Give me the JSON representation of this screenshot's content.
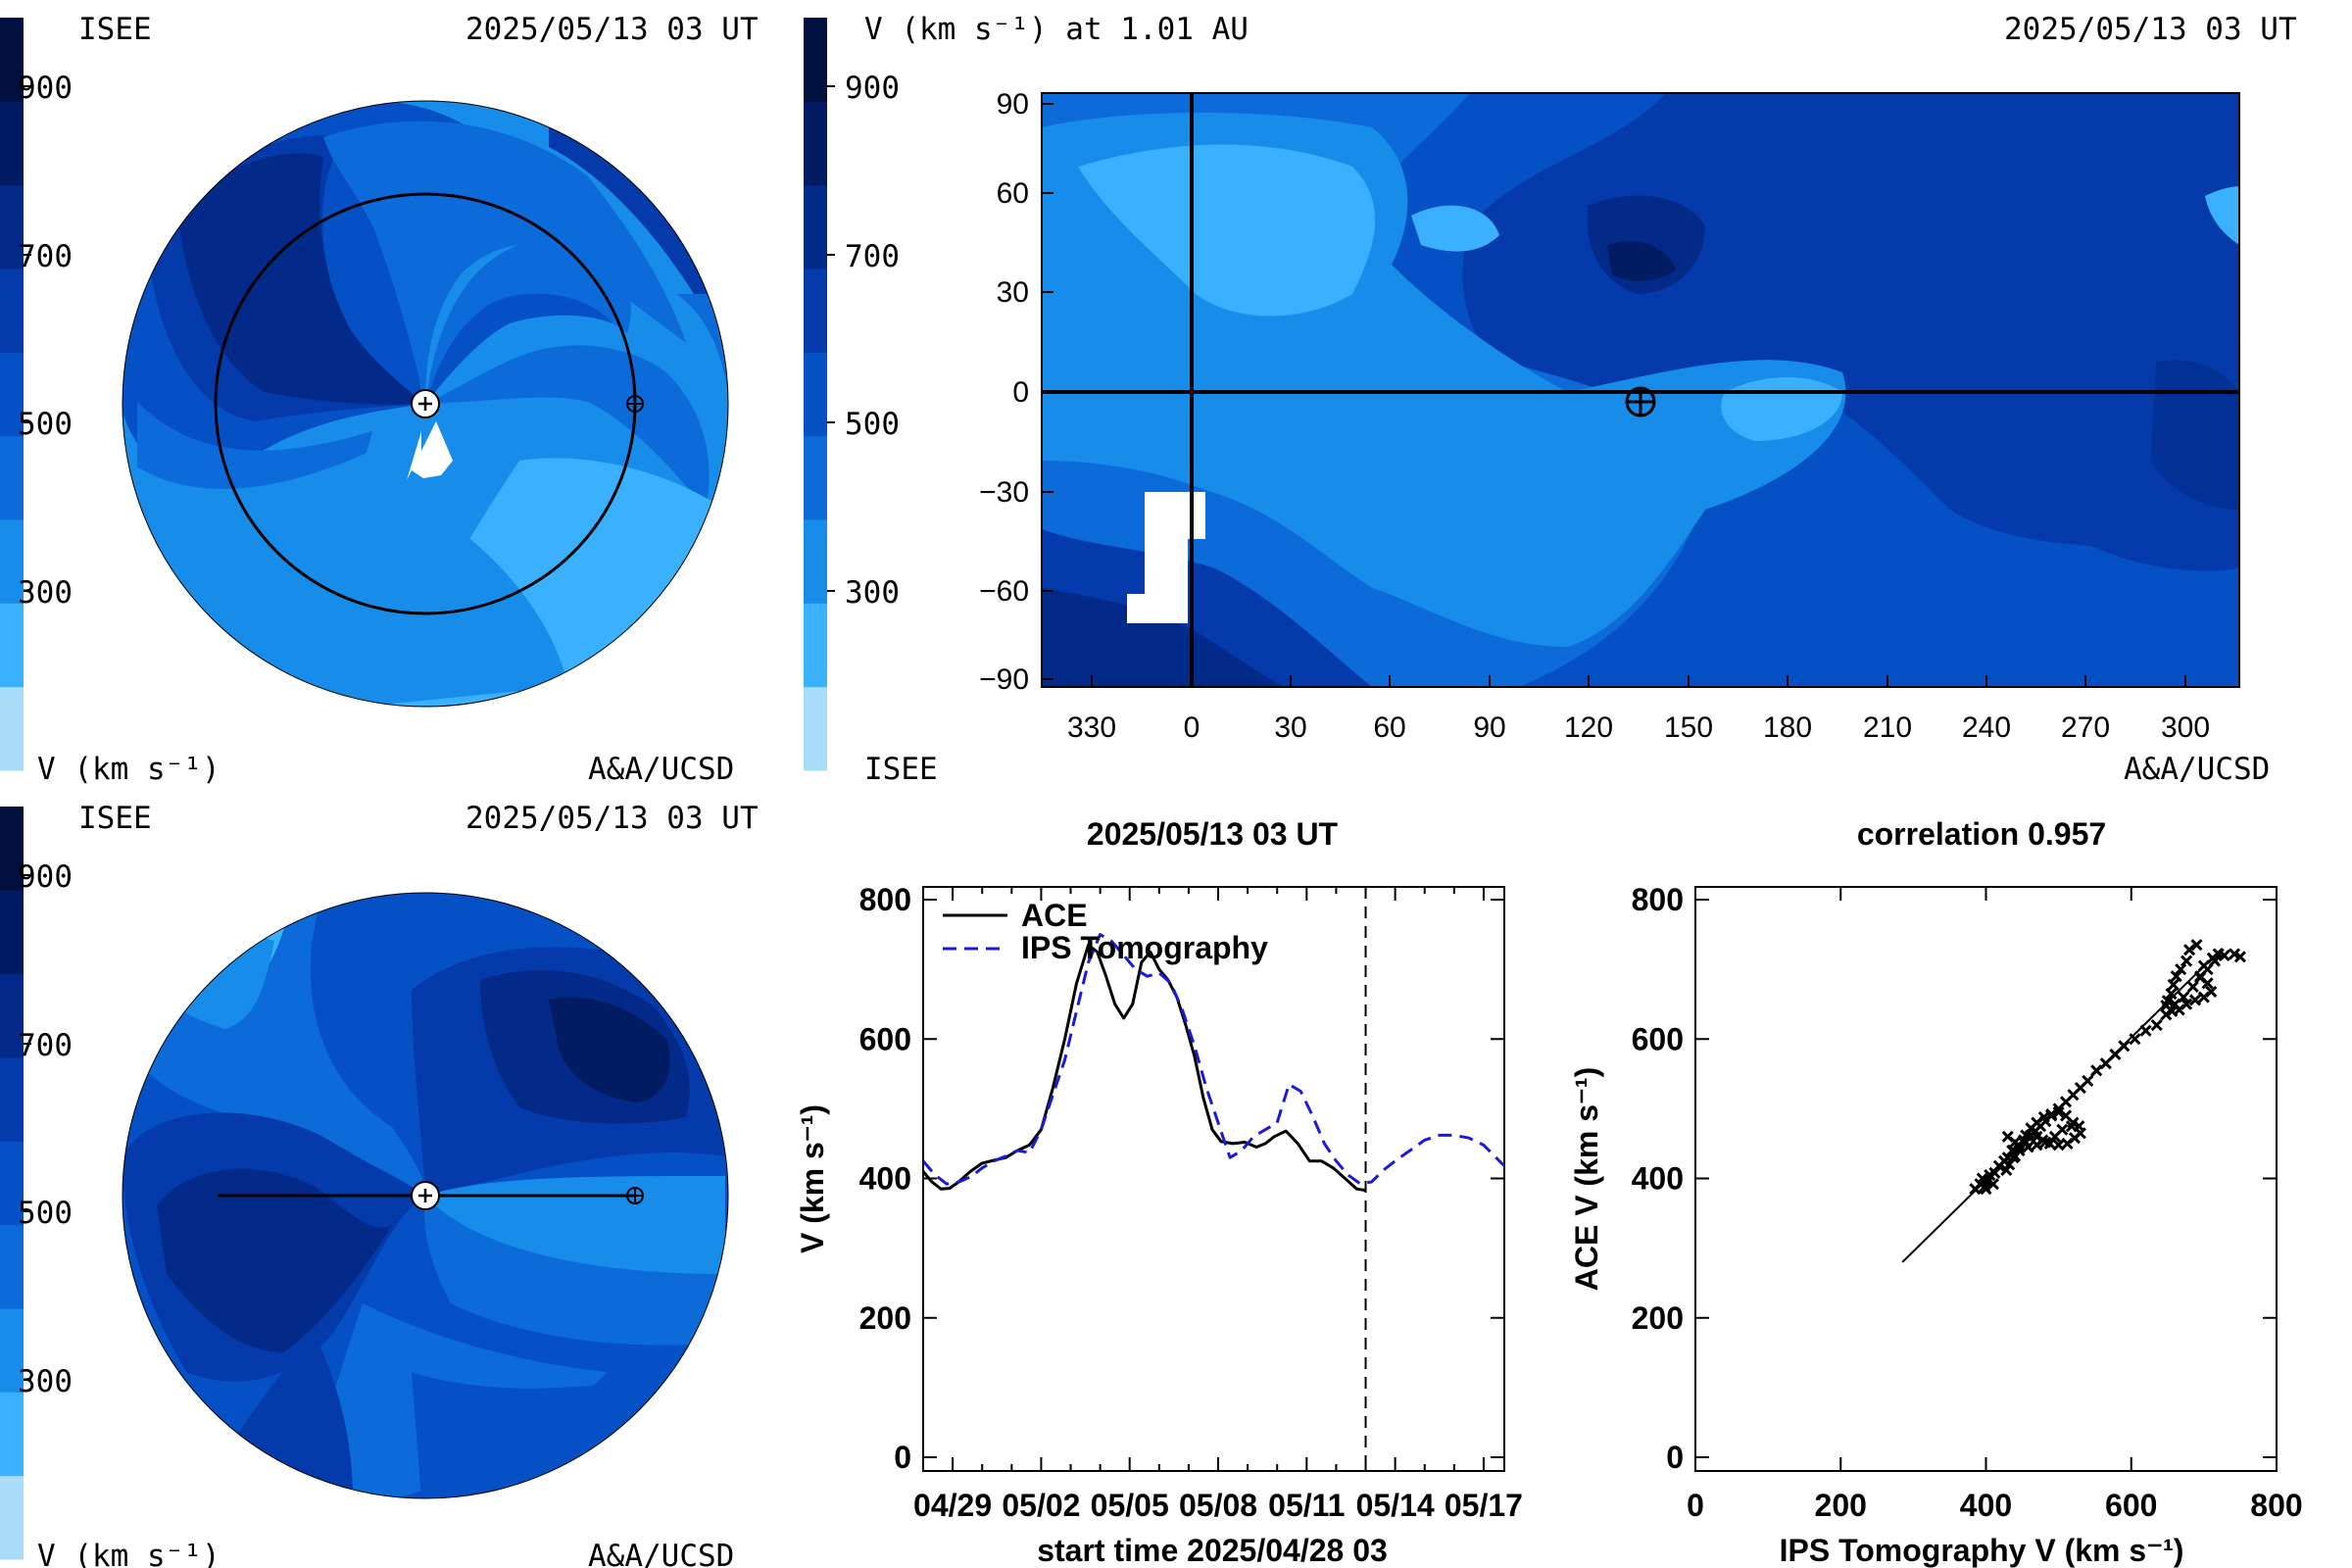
{
  "colors": {
    "levels": [
      "#a8dcf9",
      "#3ab0ff",
      "#178de9",
      "#0c6bd8",
      "#0650c6",
      "#043aa9",
      "#032a88",
      "#021c64",
      "#02103f"
    ],
    "ace": "#000000",
    "ips": "#1a1adb"
  },
  "panels": {
    "top_left": {
      "brand": "ISEE",
      "timestamp": "2025/05/13 03 UT",
      "scale_ticks": [
        "900",
        "700",
        "500",
        "300"
      ],
      "unit_label": "V (km s⁻¹)",
      "credit": "A&A/UCSD"
    },
    "top_right": {
      "title": "V (km s⁻¹) at 1.01 AU",
      "timestamp": "2025/05/13 03 UT",
      "scale_ticks": [
        "900",
        "700",
        "500",
        "300"
      ],
      "brand": "ISEE",
      "credit": "A&A/UCSD",
      "x_ticks": [
        "330",
        "0",
        "30",
        "60",
        "90",
        "120",
        "150",
        "180",
        "210",
        "240",
        "270",
        "300"
      ],
      "y_ticks": [
        "90",
        "60",
        "30",
        "0",
        "−30",
        "−60",
        "−90"
      ]
    },
    "bottom_left": {
      "brand": "ISEE",
      "timestamp": "2025/05/13 03 UT",
      "scale_ticks": [
        "900",
        "700",
        "500",
        "300"
      ],
      "unit_label": "V (km s⁻¹)",
      "credit": "A&A/UCSD"
    }
  },
  "chart_data": [
    {
      "type": "line",
      "title": "2025/05/13 03 UT",
      "xlabel": "start time 2025/04/28 03",
      "ylabel": "V (km s⁻¹)",
      "x_tick_labels": [
        "04/29",
        "05/02",
        "05/05",
        "05/08",
        "05/11",
        "05/14",
        "05/17"
      ],
      "x_tick_days": [
        1,
        4,
        7,
        10,
        13,
        16,
        19
      ],
      "xlim": [
        0,
        19.7
      ],
      "ylim": [
        0,
        800
      ],
      "y_ticks": [
        0,
        200,
        400,
        600,
        800
      ],
      "now_marker_day": 15.0,
      "legend": "top-left",
      "series": [
        {
          "name": "ACE",
          "style": "solid",
          "x": [
            0,
            0.3,
            0.6,
            0.9,
            1.2,
            1.6,
            2.0,
            2.4,
            2.8,
            3.2,
            3.6,
            4.0,
            4.4,
            4.8,
            5.2,
            5.6,
            5.9,
            6.2,
            6.5,
            6.8,
            7.1,
            7.4,
            7.7,
            8.0,
            8.3,
            8.6,
            8.9,
            9.2,
            9.5,
            9.8,
            10.1,
            10.5,
            10.9,
            11.3,
            11.6,
            11.9,
            12.3,
            12.7,
            13.1,
            13.5,
            13.9,
            14.3,
            14.7,
            15.0
          ],
          "values": [
            410,
            395,
            385,
            386,
            395,
            410,
            422,
            426,
            430,
            440,
            448,
            470,
            530,
            600,
            680,
            735,
            725,
            690,
            650,
            630,
            650,
            710,
            725,
            700,
            685,
            660,
            620,
            575,
            515,
            470,
            453,
            450,
            452,
            445,
            450,
            460,
            468,
            450,
            425,
            425,
            415,
            400,
            385,
            383
          ]
        },
        {
          "name": "IPS Tomography",
          "style": "dashed",
          "x": [
            0,
            0.4,
            0.8,
            1.2,
            1.6,
            2.0,
            2.4,
            2.8,
            3.2,
            3.6,
            4.0,
            4.4,
            4.8,
            5.2,
            5.6,
            6.0,
            6.4,
            6.8,
            7.2,
            7.6,
            8.0,
            8.4,
            8.8,
            9.2,
            9.6,
            10.0,
            10.4,
            10.8,
            11.2,
            11.6,
            12.0,
            12.4,
            12.8,
            13.2,
            13.6,
            14.0,
            14.4,
            14.8,
            15.2,
            15.6,
            16.0,
            16.5,
            17.0,
            17.5,
            18.0,
            18.5,
            19.0,
            19.7
          ],
          "values": [
            425,
            405,
            392,
            395,
            402,
            415,
            425,
            432,
            440,
            437,
            470,
            520,
            570,
            640,
            710,
            750,
            740,
            720,
            700,
            690,
            695,
            680,
            640,
            590,
            530,
            480,
            430,
            440,
            460,
            470,
            480,
            535,
            525,
            490,
            450,
            425,
            405,
            393,
            395,
            412,
            425,
            440,
            455,
            462,
            462,
            458,
            448,
            418
          ]
        }
      ]
    },
    {
      "type": "scatter",
      "title": "correlation 0.957",
      "xlabel": "IPS Tomography V (km s⁻¹)",
      "ylabel": "ACE V (km s⁻¹)",
      "xlim": [
        0,
        800
      ],
      "ylim": [
        0,
        800
      ],
      "x_ticks": [
        0,
        200,
        400,
        600,
        800
      ],
      "y_ticks": [
        0,
        200,
        400,
        600,
        800
      ],
      "fit_line": [
        [
          285,
          280
        ],
        [
          725,
          730
        ]
      ],
      "points": [
        [
          385,
          385
        ],
        [
          392,
          392
        ],
        [
          398,
          388
        ],
        [
          402,
          395
        ],
        [
          395,
          400
        ],
        [
          405,
          405
        ],
        [
          410,
          392
        ],
        [
          400,
          385
        ],
        [
          412,
          408
        ],
        [
          418,
          418
        ],
        [
          425,
          425
        ],
        [
          430,
          430
        ],
        [
          438,
          440
        ],
        [
          445,
          445
        ],
        [
          440,
          432
        ],
        [
          452,
          452
        ],
        [
          460,
          460
        ],
        [
          468,
          468
        ],
        [
          475,
          475
        ],
        [
          482,
          482
        ],
        [
          490,
          490
        ],
        [
          500,
          500
        ],
        [
          510,
          510
        ],
        [
          520,
          520
        ],
        [
          530,
          530
        ],
        [
          540,
          540
        ],
        [
          552,
          555
        ],
        [
          565,
          565
        ],
        [
          578,
          578
        ],
        [
          590,
          590
        ],
        [
          605,
          600
        ],
        [
          620,
          612
        ],
        [
          635,
          620
        ],
        [
          648,
          635
        ],
        [
          660,
          650
        ],
        [
          672,
          660
        ],
        [
          685,
          675
        ],
        [
          695,
          690
        ],
        [
          705,
          700
        ],
        [
          715,
          712
        ],
        [
          728,
          720
        ],
        [
          742,
          722
        ],
        [
          750,
          718
        ],
        [
          690,
          735
        ],
        [
          680,
          728
        ],
        [
          676,
          712
        ],
        [
          668,
          700
        ],
        [
          662,
          690
        ],
        [
          658,
          678
        ],
        [
          655,
          665
        ],
        [
          650,
          655
        ],
        [
          648,
          648
        ],
        [
          656,
          640
        ],
        [
          666,
          642
        ],
        [
          676,
          650
        ],
        [
          688,
          656
        ],
        [
          700,
          660
        ],
        [
          710,
          668
        ],
        [
          705,
          680
        ],
        [
          695,
          688
        ],
        [
          700,
          705
        ],
        [
          712,
          716
        ],
        [
          720,
          722
        ],
        [
          430,
          460
        ],
        [
          440,
          452
        ],
        [
          452,
          455
        ],
        [
          462,
          462
        ],
        [
          470,
          460
        ],
        [
          478,
          455
        ],
        [
          488,
          450
        ],
        [
          500,
          448
        ],
        [
          512,
          450
        ],
        [
          522,
          458
        ],
        [
          530,
          465
        ],
        [
          528,
          475
        ],
        [
          518,
          475
        ],
        [
          505,
          470
        ],
        [
          495,
          460
        ],
        [
          482,
          452
        ],
        [
          470,
          448
        ],
        [
          458,
          445
        ],
        [
          446,
          440
        ],
        [
          438,
          430
        ],
        [
          432,
          420
        ],
        [
          428,
          412
        ],
        [
          436,
          440
        ],
        [
          445,
          448
        ],
        [
          455,
          452
        ],
        [
          520,
          480
        ],
        [
          510,
          490
        ],
        [
          500,
          495
        ],
        [
          490,
          492
        ],
        [
          480,
          488
        ],
        [
          470,
          480
        ],
        [
          462,
          472
        ],
        [
          455,
          462
        ]
      ]
    }
  ]
}
